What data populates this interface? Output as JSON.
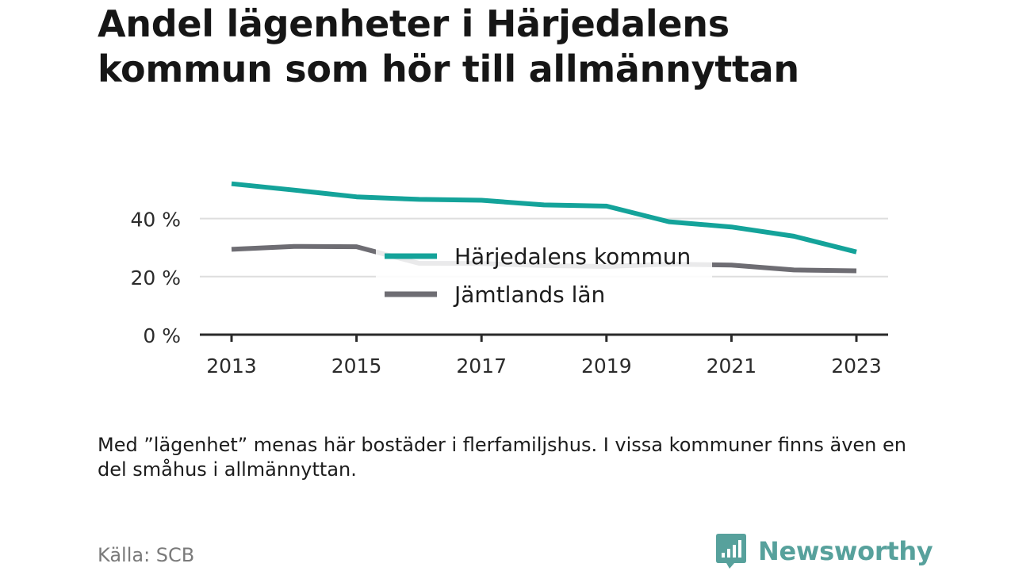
{
  "title_lines": [
    "Andel lägenheter i Härjedalens",
    "kommun som hör till allmännyttan"
  ],
  "chart_data": {
    "type": "line",
    "x": [
      2013,
      2014,
      2015,
      2016,
      2017,
      2018,
      2019,
      2020,
      2021,
      2022,
      2023
    ],
    "x_ticks": [
      "2013",
      "2015",
      "2017",
      "2019",
      "2021",
      "2023"
    ],
    "y_ticks": [
      0,
      20,
      40
    ],
    "y_tick_labels": [
      "0 %",
      "20 %",
      "40 %"
    ],
    "ylim": [
      0,
      55
    ],
    "grid": true,
    "legend_position": "center",
    "series": [
      {
        "name": "Härjedalens kommun",
        "color": "#14a39a",
        "values": [
          52,
          49.8,
          47.5,
          46.6,
          46.3,
          44.7,
          44.3,
          38.9,
          37.1,
          33.9,
          28.5
        ]
      },
      {
        "name": "Jämtlands län",
        "color": "#6e6d73",
        "values": [
          29.4,
          30.4,
          30.3,
          24.6,
          24.5,
          23.8,
          23.5,
          24.3,
          24.0,
          22.3,
          22.0
        ]
      }
    ]
  },
  "note": "Med ”lägenhet” menas här bostäder i flerfamiljshus. I vissa kommuner finns även en del småhus i allmännyttan.",
  "source": "Källa: SCB",
  "brand": {
    "name": "Newsworthy",
    "color": "#57a19c"
  }
}
